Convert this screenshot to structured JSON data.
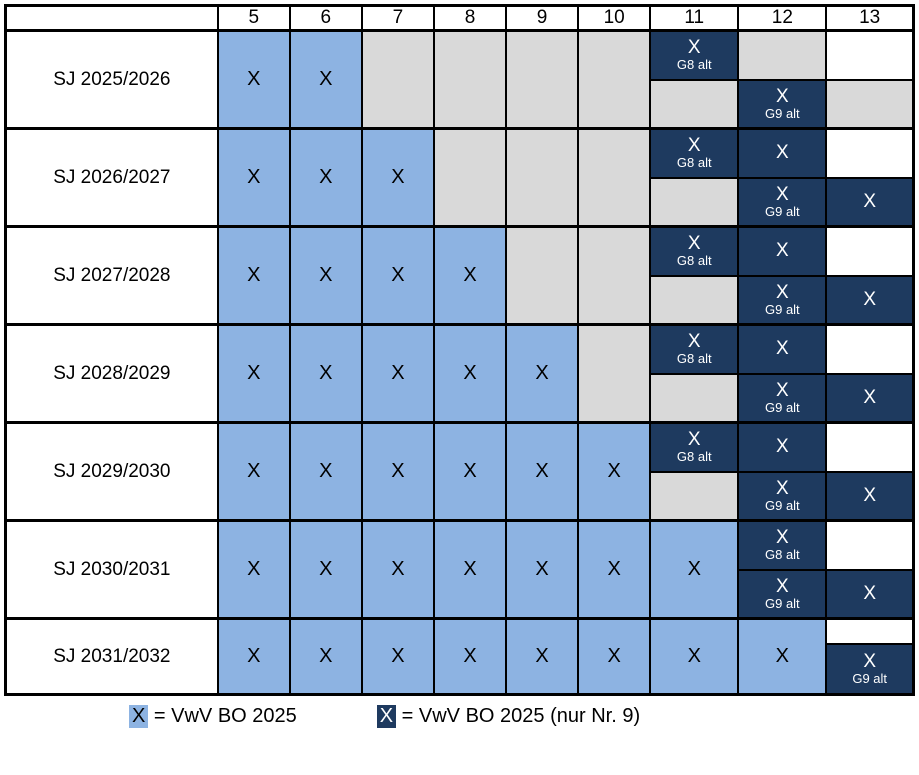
{
  "colors": {
    "light_blue": "#8DB3E2",
    "dark_blue": "#1E3A5F",
    "gray": "#D9D9D9",
    "border": "#000000"
  },
  "table": {
    "header_labels": [
      "",
      "5",
      "6",
      "7",
      "8",
      "9",
      "10",
      "11",
      "12",
      "13"
    ],
    "rows": [
      {
        "label": "SJ 2025/2026",
        "cols": [
          {
            "kind": "full",
            "type": "light",
            "text": "X"
          },
          {
            "kind": "full",
            "type": "light",
            "text": "X"
          },
          {
            "kind": "full",
            "type": "gray"
          },
          {
            "kind": "full",
            "type": "gray"
          },
          {
            "kind": "full",
            "type": "gray"
          },
          {
            "kind": "full",
            "type": "gray"
          },
          {
            "kind": "split",
            "top": {
              "type": "dark",
              "text": "X",
              "sub": "G8 alt"
            },
            "bottom": {
              "type": "gray"
            }
          },
          {
            "kind": "split",
            "top": {
              "type": "gray"
            },
            "bottom": {
              "type": "dark",
              "text": "X",
              "sub": "G9 alt"
            }
          },
          {
            "kind": "split",
            "top": {
              "type": "white"
            },
            "bottom": {
              "type": "gray"
            }
          }
        ]
      },
      {
        "label": "SJ 2026/2027",
        "cols": [
          {
            "kind": "full",
            "type": "light",
            "text": "X"
          },
          {
            "kind": "full",
            "type": "light",
            "text": "X"
          },
          {
            "kind": "full",
            "type": "light",
            "text": "X"
          },
          {
            "kind": "full",
            "type": "gray"
          },
          {
            "kind": "full",
            "type": "gray"
          },
          {
            "kind": "full",
            "type": "gray"
          },
          {
            "kind": "split",
            "top": {
              "type": "dark",
              "text": "X",
              "sub": "G8 alt"
            },
            "bottom": {
              "type": "gray"
            }
          },
          {
            "kind": "split",
            "top": {
              "type": "dark",
              "text": "X"
            },
            "bottom": {
              "type": "dark",
              "text": "X",
              "sub": "G9 alt"
            }
          },
          {
            "kind": "split",
            "top": {
              "type": "white"
            },
            "bottom": {
              "type": "dark",
              "text": "X"
            }
          }
        ]
      },
      {
        "label": "SJ 2027/2028",
        "cols": [
          {
            "kind": "full",
            "type": "light",
            "text": "X"
          },
          {
            "kind": "full",
            "type": "light",
            "text": "X"
          },
          {
            "kind": "full",
            "type": "light",
            "text": "X"
          },
          {
            "kind": "full",
            "type": "light",
            "text": "X"
          },
          {
            "kind": "full",
            "type": "gray"
          },
          {
            "kind": "full",
            "type": "gray"
          },
          {
            "kind": "split",
            "top": {
              "type": "dark",
              "text": "X",
              "sub": "G8 alt"
            },
            "bottom": {
              "type": "gray"
            }
          },
          {
            "kind": "split",
            "top": {
              "type": "dark",
              "text": "X"
            },
            "bottom": {
              "type": "dark",
              "text": "X",
              "sub": "G9 alt"
            }
          },
          {
            "kind": "split",
            "top": {
              "type": "white"
            },
            "bottom": {
              "type": "dark",
              "text": "X"
            }
          }
        ]
      },
      {
        "label": "SJ 2028/2029",
        "cols": [
          {
            "kind": "full",
            "type": "light",
            "text": "X"
          },
          {
            "kind": "full",
            "type": "light",
            "text": "X"
          },
          {
            "kind": "full",
            "type": "light",
            "text": "X"
          },
          {
            "kind": "full",
            "type": "light",
            "text": "X"
          },
          {
            "kind": "full",
            "type": "light",
            "text": "X"
          },
          {
            "kind": "full",
            "type": "gray"
          },
          {
            "kind": "split",
            "top": {
              "type": "dark",
              "text": "X",
              "sub": "G8 alt"
            },
            "bottom": {
              "type": "gray"
            }
          },
          {
            "kind": "split",
            "top": {
              "type": "dark",
              "text": "X"
            },
            "bottom": {
              "type": "dark",
              "text": "X",
              "sub": "G9 alt"
            }
          },
          {
            "kind": "split",
            "top": {
              "type": "white"
            },
            "bottom": {
              "type": "dark",
              "text": "X"
            }
          }
        ]
      },
      {
        "label": "SJ 2029/2030",
        "cols": [
          {
            "kind": "full",
            "type": "light",
            "text": "X"
          },
          {
            "kind": "full",
            "type": "light",
            "text": "X"
          },
          {
            "kind": "full",
            "type": "light",
            "text": "X"
          },
          {
            "kind": "full",
            "type": "light",
            "text": "X"
          },
          {
            "kind": "full",
            "type": "light",
            "text": "X"
          },
          {
            "kind": "full",
            "type": "light",
            "text": "X"
          },
          {
            "kind": "split",
            "top": {
              "type": "dark",
              "text": "X",
              "sub": "G8 alt"
            },
            "bottom": {
              "type": "gray"
            }
          },
          {
            "kind": "split",
            "top": {
              "type": "dark",
              "text": "X"
            },
            "bottom": {
              "type": "dark",
              "text": "X",
              "sub": "G9 alt"
            }
          },
          {
            "kind": "split",
            "top": {
              "type": "white"
            },
            "bottom": {
              "type": "dark",
              "text": "X"
            }
          }
        ]
      },
      {
        "label": "SJ 2030/2031",
        "cols": [
          {
            "kind": "full",
            "type": "light",
            "text": "X"
          },
          {
            "kind": "full",
            "type": "light",
            "text": "X"
          },
          {
            "kind": "full",
            "type": "light",
            "text": "X"
          },
          {
            "kind": "full",
            "type": "light",
            "text": "X"
          },
          {
            "kind": "full",
            "type": "light",
            "text": "X"
          },
          {
            "kind": "full",
            "type": "light",
            "text": "X"
          },
          {
            "kind": "full",
            "type": "light",
            "text": "X"
          },
          {
            "kind": "split",
            "top": {
              "type": "dark",
              "text": "X",
              "sub": "G8 alt"
            },
            "bottom": {
              "type": "dark",
              "text": "X",
              "sub": "G9 alt"
            }
          },
          {
            "kind": "split",
            "top": {
              "type": "white"
            },
            "bottom": {
              "type": "dark",
              "text": "X"
            }
          }
        ]
      },
      {
        "label": "SJ 2031/2032",
        "cols": [
          {
            "kind": "full",
            "type": "light",
            "text": "X"
          },
          {
            "kind": "full",
            "type": "light",
            "text": "X"
          },
          {
            "kind": "full",
            "type": "light",
            "text": "X"
          },
          {
            "kind": "full",
            "type": "light",
            "text": "X"
          },
          {
            "kind": "full",
            "type": "light",
            "text": "X"
          },
          {
            "kind": "full",
            "type": "light",
            "text": "X"
          },
          {
            "kind": "full",
            "type": "light",
            "text": "X"
          },
          {
            "kind": "full",
            "type": "light",
            "text": "X"
          },
          {
            "kind": "split",
            "top": {
              "type": "white"
            },
            "bottom": {
              "type": "dark",
              "text": "X",
              "sub": "G9 alt"
            }
          }
        ]
      }
    ]
  },
  "legend": {
    "items": [
      {
        "symbol": "X",
        "swatch": "light",
        "text": "= VwV BO 2025"
      },
      {
        "symbol": "X",
        "swatch": "dark",
        "text": "= VwV BO 2025 (nur Nr. 9)"
      }
    ]
  }
}
